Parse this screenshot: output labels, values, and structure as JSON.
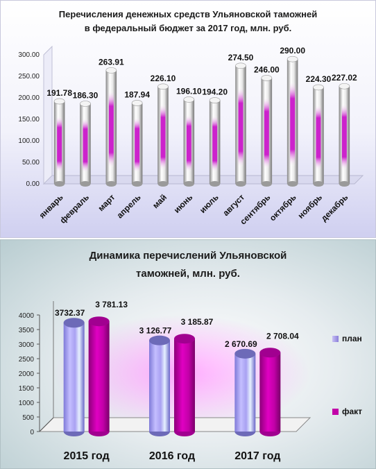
{
  "chart_data": [
    {
      "type": "bar",
      "title": "Перечисления денежных средств Ульяновской таможней",
      "subtitle": "в федеральный бюджет за 2017 год, млн. руб.",
      "categories": [
        "январь",
        "февраль",
        "март",
        "апрель",
        "май",
        "июнь",
        "июль",
        "август",
        "сентябрь",
        "октябрь",
        "ноябрь",
        "декабрь"
      ],
      "values": [
        191.78,
        186.3,
        263.91,
        187.94,
        226.1,
        196.1,
        194.2,
        274.5,
        246.0,
        290.0,
        224.3,
        227.02
      ],
      "value_labels": [
        "191.78",
        "186.30",
        "263.91",
        "187.94",
        "226.10",
        "196.10",
        "194.20",
        "274.50",
        "246.00",
        "290.00",
        "224.30",
        "227.02"
      ],
      "ylim": [
        0,
        300
      ],
      "yticks": [
        "0.00",
        "50.00",
        "100.00",
        "150.00",
        "200.00",
        "250.00",
        "300.00"
      ],
      "grid": false,
      "legend": "none",
      "colors": {
        "cylinder": "#d8d8d8",
        "core": "#cc22cc"
      }
    },
    {
      "type": "bar",
      "title": "Динамика перечислений Ульяновской таможней, млн. руб.",
      "categories": [
        "2015 год",
        "2016 год",
        "2017 год"
      ],
      "series": [
        {
          "name": "план",
          "values": [
            3732.37,
            3126.77,
            2670.69
          ],
          "labels": [
            "3732.37",
            "3 126.77",
            "2 670.69"
          ],
          "color": "#9a8ee0"
        },
        {
          "name": "факт",
          "values": [
            3781.13,
            3185.87,
            2708.04
          ],
          "labels": [
            "3 781.13",
            "3 185.87",
            "2 708.04"
          ],
          "color": "#c200a8"
        }
      ],
      "ylim": [
        0,
        4000
      ],
      "yticks": [
        "0",
        "500",
        "1000",
        "1500",
        "2000",
        "2500",
        "3000",
        "3500",
        "4000"
      ],
      "grid": false,
      "legend": "right"
    }
  ]
}
